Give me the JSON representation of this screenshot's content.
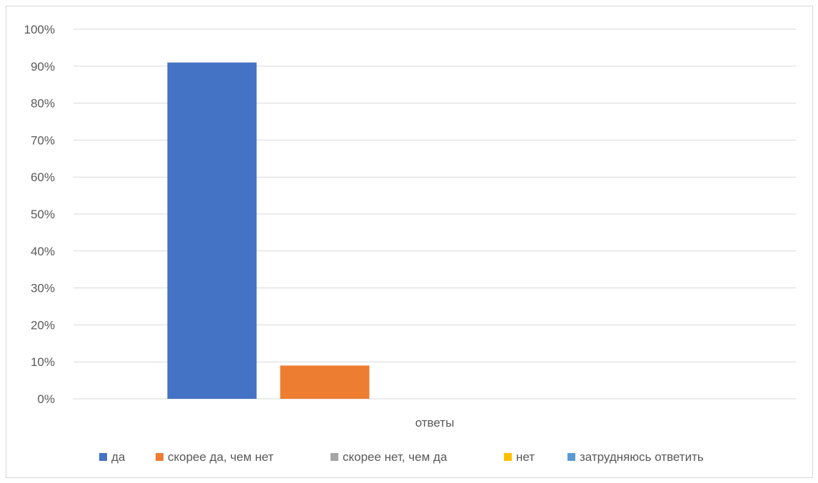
{
  "chart_data": {
    "type": "bar",
    "categories": [
      "ответы"
    ],
    "series": [
      {
        "name": "да",
        "values": [
          91
        ],
        "color": "#4472C4"
      },
      {
        "name": "скорее да, чем нет",
        "values": [
          9
        ],
        "color": "#ED7D31"
      },
      {
        "name": "скорее нет, чем да",
        "values": [
          0
        ],
        "color": "#A5A5A5"
      },
      {
        "name": "нет",
        "values": [
          0
        ],
        "color": "#FFC000"
      },
      {
        "name": "затрудняюсь ответить",
        "values": [
          0
        ],
        "color": "#5B9BD5"
      }
    ],
    "ylim": [
      0,
      100
    ],
    "y_ticks": [
      "0%",
      "10%",
      "20%",
      "30%",
      "40%",
      "50%",
      "60%",
      "70%",
      "80%",
      "90%",
      "100%"
    ],
    "grid": true,
    "legend_position": "bottom"
  }
}
